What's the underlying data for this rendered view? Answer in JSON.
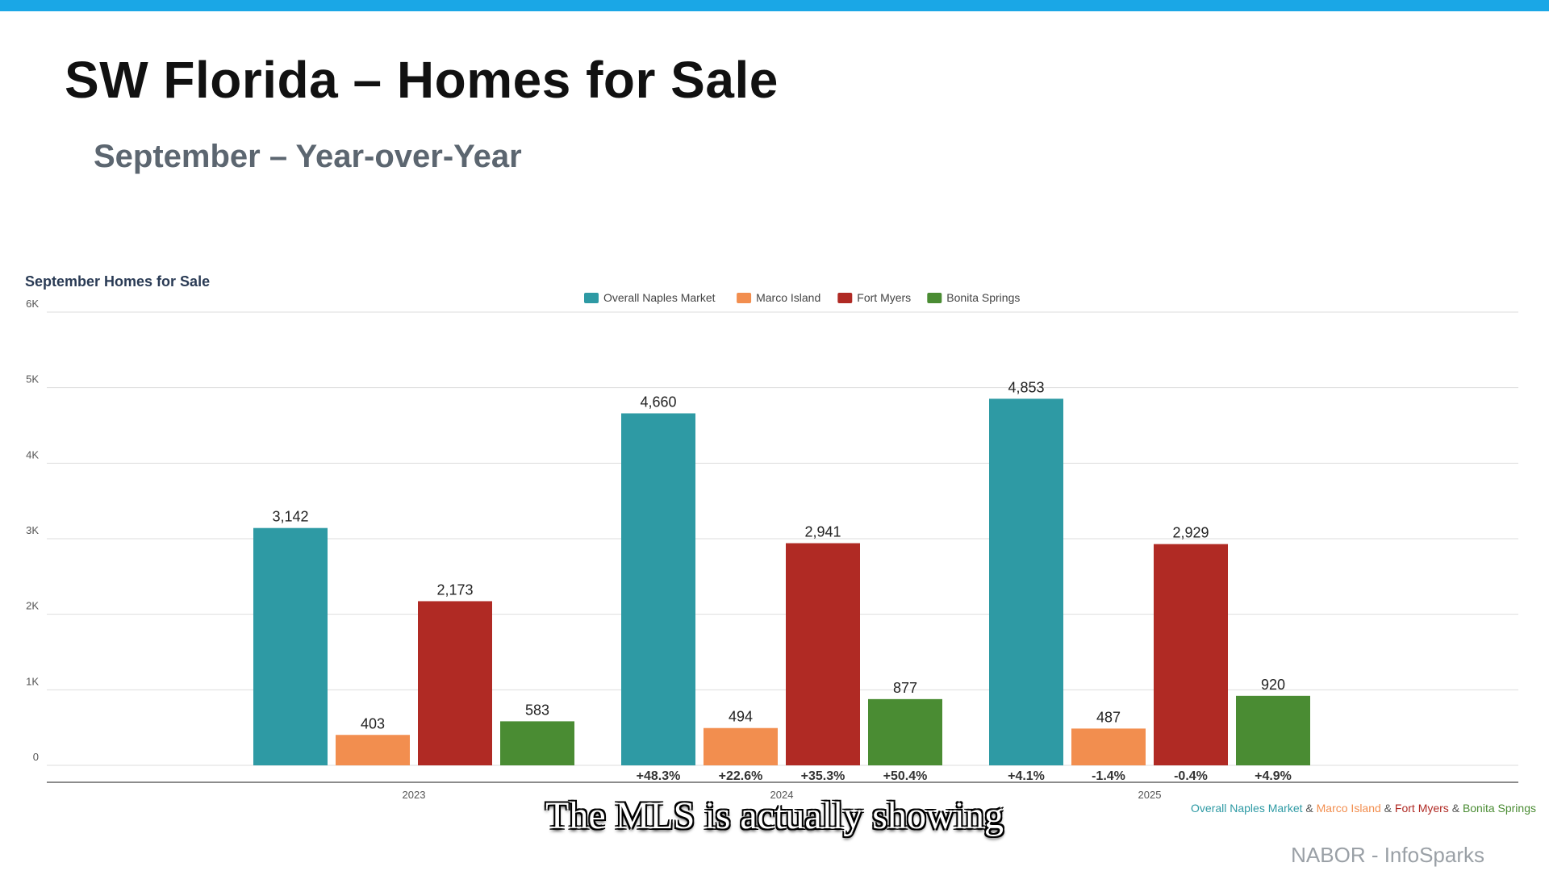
{
  "header": {
    "title": "SW Florida – Homes for Sale",
    "subtitle": "September – Year-over-Year"
  },
  "chart_data": {
    "type": "bar",
    "title": "September Homes for Sale",
    "categories": [
      "2023",
      "2024",
      "2025"
    ],
    "series": [
      {
        "name": "Overall Naples Market",
        "color": "#2e9aa4",
        "values": [
          3142,
          4660,
          4853
        ],
        "labels": [
          "3,142",
          "4,660",
          "4,853"
        ],
        "changes": [
          "",
          "+48.3%",
          "+4.1%"
        ]
      },
      {
        "name": "Marco Island",
        "color": "#f28e4f",
        "values": [
          403,
          494,
          487
        ],
        "labels": [
          "403",
          "494",
          "487"
        ],
        "changes": [
          "",
          "+22.6%",
          "-1.4%"
        ]
      },
      {
        "name": "Fort Myers",
        "color": "#b02a24",
        "values": [
          2173,
          2941,
          2929
        ],
        "labels": [
          "2,173",
          "2,941",
          "2,929"
        ],
        "changes": [
          "",
          "+35.3%",
          "-0.4%"
        ]
      },
      {
        "name": "Bonita Springs",
        "color": "#4a8c33",
        "values": [
          583,
          877,
          920
        ],
        "labels": [
          "583",
          "877",
          "920"
        ],
        "changes": [
          "",
          "+50.4%",
          "+4.9%"
        ]
      }
    ],
    "ylim": [
      0,
      6000
    ],
    "yticks": [
      {
        "value": 0,
        "label": "0"
      },
      {
        "value": 1000,
        "label": "1K"
      },
      {
        "value": 2000,
        "label": "2K"
      },
      {
        "value": 3000,
        "label": "3K"
      },
      {
        "value": 4000,
        "label": "4K"
      },
      {
        "value": 5000,
        "label": "5K"
      },
      {
        "value": 6000,
        "label": "6K"
      }
    ],
    "grid": true,
    "legend": "top-center"
  },
  "footer": {
    "legend_items": [
      "Overall Naples Market",
      "Marco Island",
      "Fort Myers",
      "Bonita Springs"
    ],
    "legend_separator": " & ",
    "caption": "The MLS is actually showing",
    "source": "NABOR - InfoSparks"
  }
}
